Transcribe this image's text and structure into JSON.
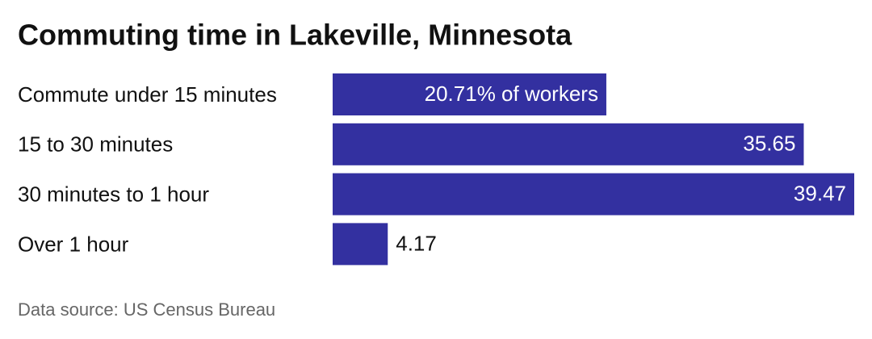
{
  "chart_data": {
    "type": "bar",
    "orientation": "horizontal",
    "title": "Commuting time in Lakeville, Minnesota",
    "categories": [
      "Commute under 15 minutes",
      "15 to 30 minutes",
      "30 minutes to 1 hour",
      "Over 1 hour"
    ],
    "values": [
      20.71,
      35.65,
      39.47,
      4.17
    ],
    "value_labels": [
      "20.71% of workers",
      "35.65",
      "39.47",
      "4.17"
    ],
    "color": "#3330a0",
    "source": "Data source: US Census Bureau"
  }
}
